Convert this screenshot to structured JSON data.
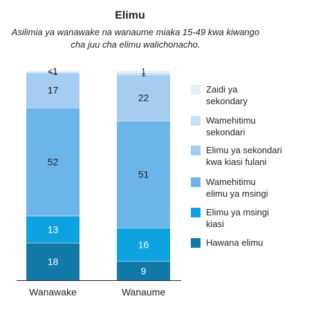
{
  "chart_data": {
    "type": "bar",
    "stacked": true,
    "title": "Elimu",
    "subtitle": "Asilimia ya wanawake na wanaume miaka 15-49 kwa kiwango cha juu cha elimu walichonacho.",
    "categories": [
      "Wanawake",
      "Wanaume"
    ],
    "series": [
      {
        "name": "Hawana elimu",
        "values": [
          18,
          9
        ],
        "labels": [
          "18",
          "9"
        ],
        "color": "#1079a8",
        "text_color": "#ffffff"
      },
      {
        "name": "Elimu ya msingi kiasi",
        "values": [
          13,
          16
        ],
        "labels": [
          "13",
          "16"
        ],
        "color": "#0ea3e0",
        "text_color": "#ffffff"
      },
      {
        "name": "Wamehitimu elimu ya msingi",
        "values": [
          52,
          51
        ],
        "labels": [
          "52",
          "51"
        ],
        "color": "#6cb5e8",
        "text_color": "#231f20"
      },
      {
        "name": "Elimu ya sekondari kwa kiasi fulani",
        "values": [
          17,
          22
        ],
        "labels": [
          "17",
          "22"
        ],
        "color": "#a5cdef",
        "text_color": "#231f20"
      },
      {
        "name": "Wamehitimu sekondari",
        "values": [
          0.5,
          1
        ],
        "labels": [
          "<1",
          "1"
        ],
        "color": "#c8e0f6",
        "text_color": "#231f20"
      },
      {
        "name": "Zaidi ya sekondary",
        "values": [
          0.5,
          1
        ],
        "labels": [
          "<1",
          "1"
        ],
        "color": "#e3eff9",
        "text_color": "#231f20"
      }
    ],
    "ylim": [
      0,
      100
    ],
    "legend": "right"
  },
  "legend_lines": [
    [
      "Zaidi ya",
      "sekondary"
    ],
    [
      "Wamehitimu",
      "sekondari"
    ],
    [
      "Elimu ya sekondari",
      "kwa kiasi fulani"
    ],
    [
      "Wamehitimu",
      "elimu ya msingi"
    ],
    [
      "Elimu ya msingi",
      "kiasi"
    ],
    [
      "Hawana elimu"
    ]
  ]
}
